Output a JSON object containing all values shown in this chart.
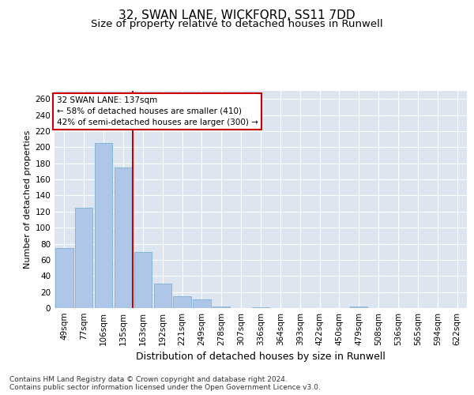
{
  "title1": "32, SWAN LANE, WICKFORD, SS11 7DD",
  "title2": "Size of property relative to detached houses in Runwell",
  "xlabel": "Distribution of detached houses by size in Runwell",
  "ylabel": "Number of detached properties",
  "categories": [
    "49sqm",
    "77sqm",
    "106sqm",
    "135sqm",
    "163sqm",
    "192sqm",
    "221sqm",
    "249sqm",
    "278sqm",
    "307sqm",
    "336sqm",
    "364sqm",
    "393sqm",
    "422sqm",
    "450sqm",
    "479sqm",
    "508sqm",
    "536sqm",
    "565sqm",
    "594sqm",
    "622sqm"
  ],
  "values": [
    75,
    125,
    205,
    175,
    70,
    30,
    15,
    11,
    2,
    0,
    1,
    0,
    0,
    0,
    0,
    2,
    0,
    0,
    0,
    0,
    0
  ],
  "bar_color": "#aec6e8",
  "bar_edge_color": "#7bafd4",
  "ylim": [
    0,
    270
  ],
  "yticks": [
    0,
    20,
    40,
    60,
    80,
    100,
    120,
    140,
    160,
    180,
    200,
    220,
    240,
    260
  ],
  "vline_x": 3.5,
  "vline_color": "#cc0000",
  "annotation_text": "32 SWAN LANE: 137sqm\n← 58% of detached houses are smaller (410)\n42% of semi-detached houses are larger (300) →",
  "bg_color": "#dde6f0",
  "footer": "Contains HM Land Registry data © Crown copyright and database right 2024.\nContains public sector information licensed under the Open Government Licence v3.0.",
  "title1_fontsize": 11,
  "title2_fontsize": 9.5,
  "xlabel_fontsize": 9,
  "ylabel_fontsize": 8,
  "tick_fontsize": 7.5,
  "footer_fontsize": 6.5,
  "ann_fontsize": 7.5
}
